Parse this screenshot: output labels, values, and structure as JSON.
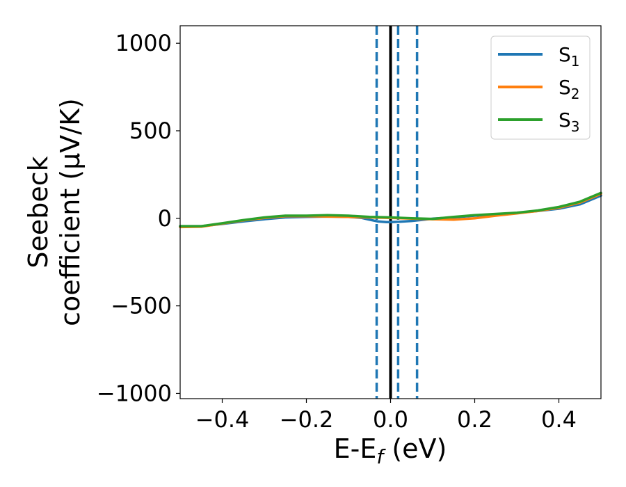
{
  "chart_data": {
    "type": "line",
    "title": "",
    "xlabel": "E-E",
    "xlabel_sub": "f",
    "xlabel_unit": " (eV)",
    "ylabel_line1": "Seebeck",
    "ylabel_line2": "coefficient  (μV/K)",
    "xlim": [
      -0.5,
      0.5
    ],
    "ylim": [
      -1030,
      1100
    ],
    "xticks": [
      -0.4,
      -0.2,
      0.0,
      0.2,
      0.4
    ],
    "xtick_labels": [
      "−0.4",
      "−0.2",
      "0.0",
      "0.2",
      "0.4"
    ],
    "yticks": [
      -1000,
      -500,
      0,
      500,
      1000
    ],
    "ytick_labels": [
      "−1000",
      "−500",
      "0",
      "500",
      "1000"
    ],
    "grid": false,
    "legend_position": "top-right",
    "series": [
      {
        "name": "S",
        "name_sub": "1",
        "color": "#1f77b4",
        "x": [
          -0.5,
          -0.45,
          -0.4,
          -0.35,
          -0.3,
          -0.25,
          -0.2,
          -0.15,
          -0.1,
          -0.07,
          -0.05,
          -0.03,
          -0.01,
          0.0,
          0.02,
          0.05,
          0.08,
          0.1,
          0.15,
          0.2,
          0.25,
          0.3,
          0.35,
          0.4,
          0.45,
          0.5
        ],
        "y": [
          -45,
          -45,
          -32,
          -18,
          -5,
          5,
          8,
          10,
          8,
          3,
          -8,
          -18,
          -22,
          -22,
          -20,
          -15,
          -8,
          -2,
          5,
          15,
          22,
          30,
          42,
          55,
          80,
          130
        ]
      },
      {
        "name": "S",
        "name_sub": "2",
        "color": "#ff7f0e",
        "x": [
          -0.5,
          -0.45,
          -0.4,
          -0.35,
          -0.3,
          -0.25,
          -0.2,
          -0.15,
          -0.1,
          -0.05,
          0.0,
          0.05,
          0.1,
          0.15,
          0.2,
          0.25,
          0.3,
          0.35,
          0.4,
          0.45,
          0.5
        ],
        "y": [
          -50,
          -48,
          -30,
          -12,
          2,
          12,
          12,
          10,
          8,
          5,
          2,
          -2,
          -5,
          -8,
          0,
          15,
          28,
          42,
          60,
          90,
          140
        ]
      },
      {
        "name": "S",
        "name_sub": "3",
        "color": "#2ca02c",
        "x": [
          -0.5,
          -0.45,
          -0.4,
          -0.35,
          -0.3,
          -0.25,
          -0.2,
          -0.15,
          -0.1,
          -0.05,
          0.0,
          0.05,
          0.1,
          0.15,
          0.2,
          0.25,
          0.3,
          0.35,
          0.4,
          0.45,
          0.5
        ],
        "y": [
          -45,
          -45,
          -28,
          -10,
          5,
          15,
          15,
          18,
          15,
          8,
          5,
          0,
          -3,
          8,
          18,
          25,
          32,
          45,
          65,
          95,
          145
        ]
      }
    ],
    "vertical_lines": [
      {
        "x": 0.0,
        "style": "solid",
        "color": "#000000"
      },
      {
        "x": -0.033,
        "style": "dashed",
        "color": "#1f77b4"
      },
      {
        "x": 0.018,
        "style": "dashed",
        "color": "#1f77b4"
      },
      {
        "x": 0.063,
        "style": "dashed",
        "color": "#1f77b4"
      }
    ]
  }
}
